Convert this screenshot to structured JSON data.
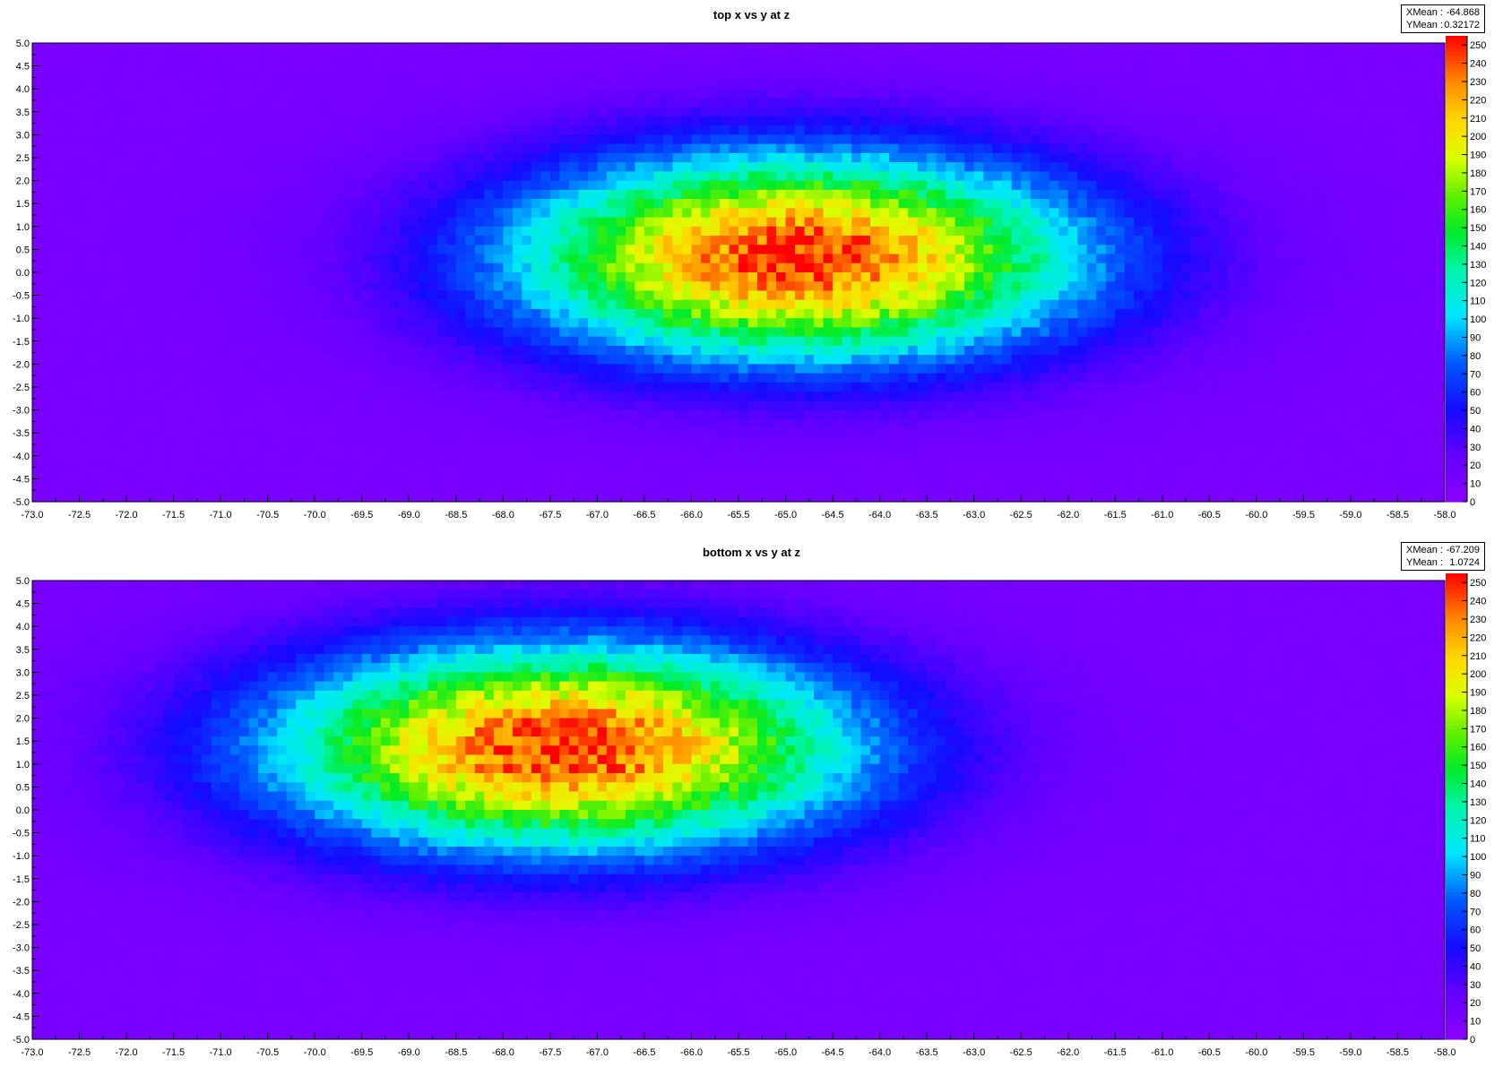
{
  "chart_data": [
    {
      "type": "heatmap",
      "title": "top  x vs y at z",
      "xlabel": "",
      "ylabel": "",
      "xlim": [
        -73.0,
        -58.0
      ],
      "ylim": [
        -5.0,
        5.0
      ],
      "x_ticks": [
        "-73.0",
        "-72.5",
        "-72.0",
        "-71.5",
        "-71.0",
        "-70.5",
        "-70.0",
        "-69.5",
        "-69.0",
        "-68.5",
        "-68.0",
        "-67.5",
        "-67.0",
        "-66.5",
        "-66.0",
        "-65.5",
        "-65.0",
        "-64.5",
        "-64.0",
        "-63.5",
        "-63.0",
        "-62.5",
        "-62.0",
        "-61.5",
        "-61.0",
        "-60.5",
        "-60.0",
        "-59.5",
        "-59.0",
        "-58.5",
        "-58.0"
      ],
      "y_ticks": [
        "5.0",
        "4.5",
        "4.0",
        "3.5",
        "3.0",
        "2.5",
        "2.0",
        "1.5",
        "1.0",
        "0.5",
        "0.0",
        "-0.5",
        "-1.0",
        "-1.5",
        "-2.0",
        "-2.5",
        "-3.0",
        "-3.5",
        "-4.0",
        "-4.5",
        "-5.0"
      ],
      "colorbar": {
        "range": [
          0,
          255
        ],
        "ticks": [
          "0",
          "10",
          "20",
          "30",
          "40",
          "50",
          "60",
          "70",
          "80",
          "90",
          "100",
          "110",
          "120",
          "130",
          "140",
          "150",
          "160",
          "170",
          "180",
          "190",
          "200",
          "210",
          "220",
          "230",
          "240",
          "250"
        ]
      },
      "stats": {
        "xmean_label": "XMean :",
        "xmean": "-64.868",
        "ymean_label": "YMean :",
        "ymean": "0.32172"
      },
      "peak": {
        "x_center": -64.868,
        "y_center": 0.32172,
        "sigma_x": 2.1,
        "sigma_y": 1.55,
        "max_value": 250,
        "baseline": 12
      },
      "grid": false
    },
    {
      "type": "heatmap",
      "title": "bottom  x vs y at z",
      "xlabel": "",
      "ylabel": "",
      "xlim": [
        -73.0,
        -58.0
      ],
      "ylim": [
        -5.0,
        5.0
      ],
      "x_ticks": [
        "-73.0",
        "-72.5",
        "-72.0",
        "-71.5",
        "-71.0",
        "-70.5",
        "-70.0",
        "-69.5",
        "-69.0",
        "-68.5",
        "-68.0",
        "-67.5",
        "-67.0",
        "-66.5",
        "-66.0",
        "-65.5",
        "-65.0",
        "-64.5",
        "-64.0",
        "-63.5",
        "-63.0",
        "-62.5",
        "-62.0",
        "-61.5",
        "-61.0",
        "-60.5",
        "-60.0",
        "-59.5",
        "-59.0",
        "-58.5",
        "-58.0"
      ],
      "y_ticks": [
        "5.0",
        "4.5",
        "4.0",
        "3.5",
        "3.0",
        "2.5",
        "2.0",
        "1.5",
        "1.0",
        "0.5",
        "0.0",
        "-0.5",
        "-1.0",
        "-1.5",
        "-2.0",
        "-2.5",
        "-3.0",
        "-3.5",
        "-4.0",
        "-4.5",
        "-5.0"
      ],
      "colorbar": {
        "range": [
          0,
          255
        ],
        "ticks": [
          "0",
          "10",
          "20",
          "30",
          "40",
          "50",
          "60",
          "70",
          "80",
          "90",
          "100",
          "110",
          "120",
          "130",
          "140",
          "150",
          "160",
          "170",
          "180",
          "190",
          "200",
          "210",
          "220",
          "230",
          "240",
          "250"
        ]
      },
      "stats": {
        "xmean_label": "XMean :",
        "xmean": "-67.209",
        "ymean_label": "YMean :",
        "ymean": "1.0724"
      },
      "peak": {
        "x_center": -67.35,
        "y_center": 1.35,
        "sigma_x": 2.15,
        "sigma_y": 1.55,
        "max_value": 250,
        "baseline": 12
      },
      "grid": false
    }
  ]
}
